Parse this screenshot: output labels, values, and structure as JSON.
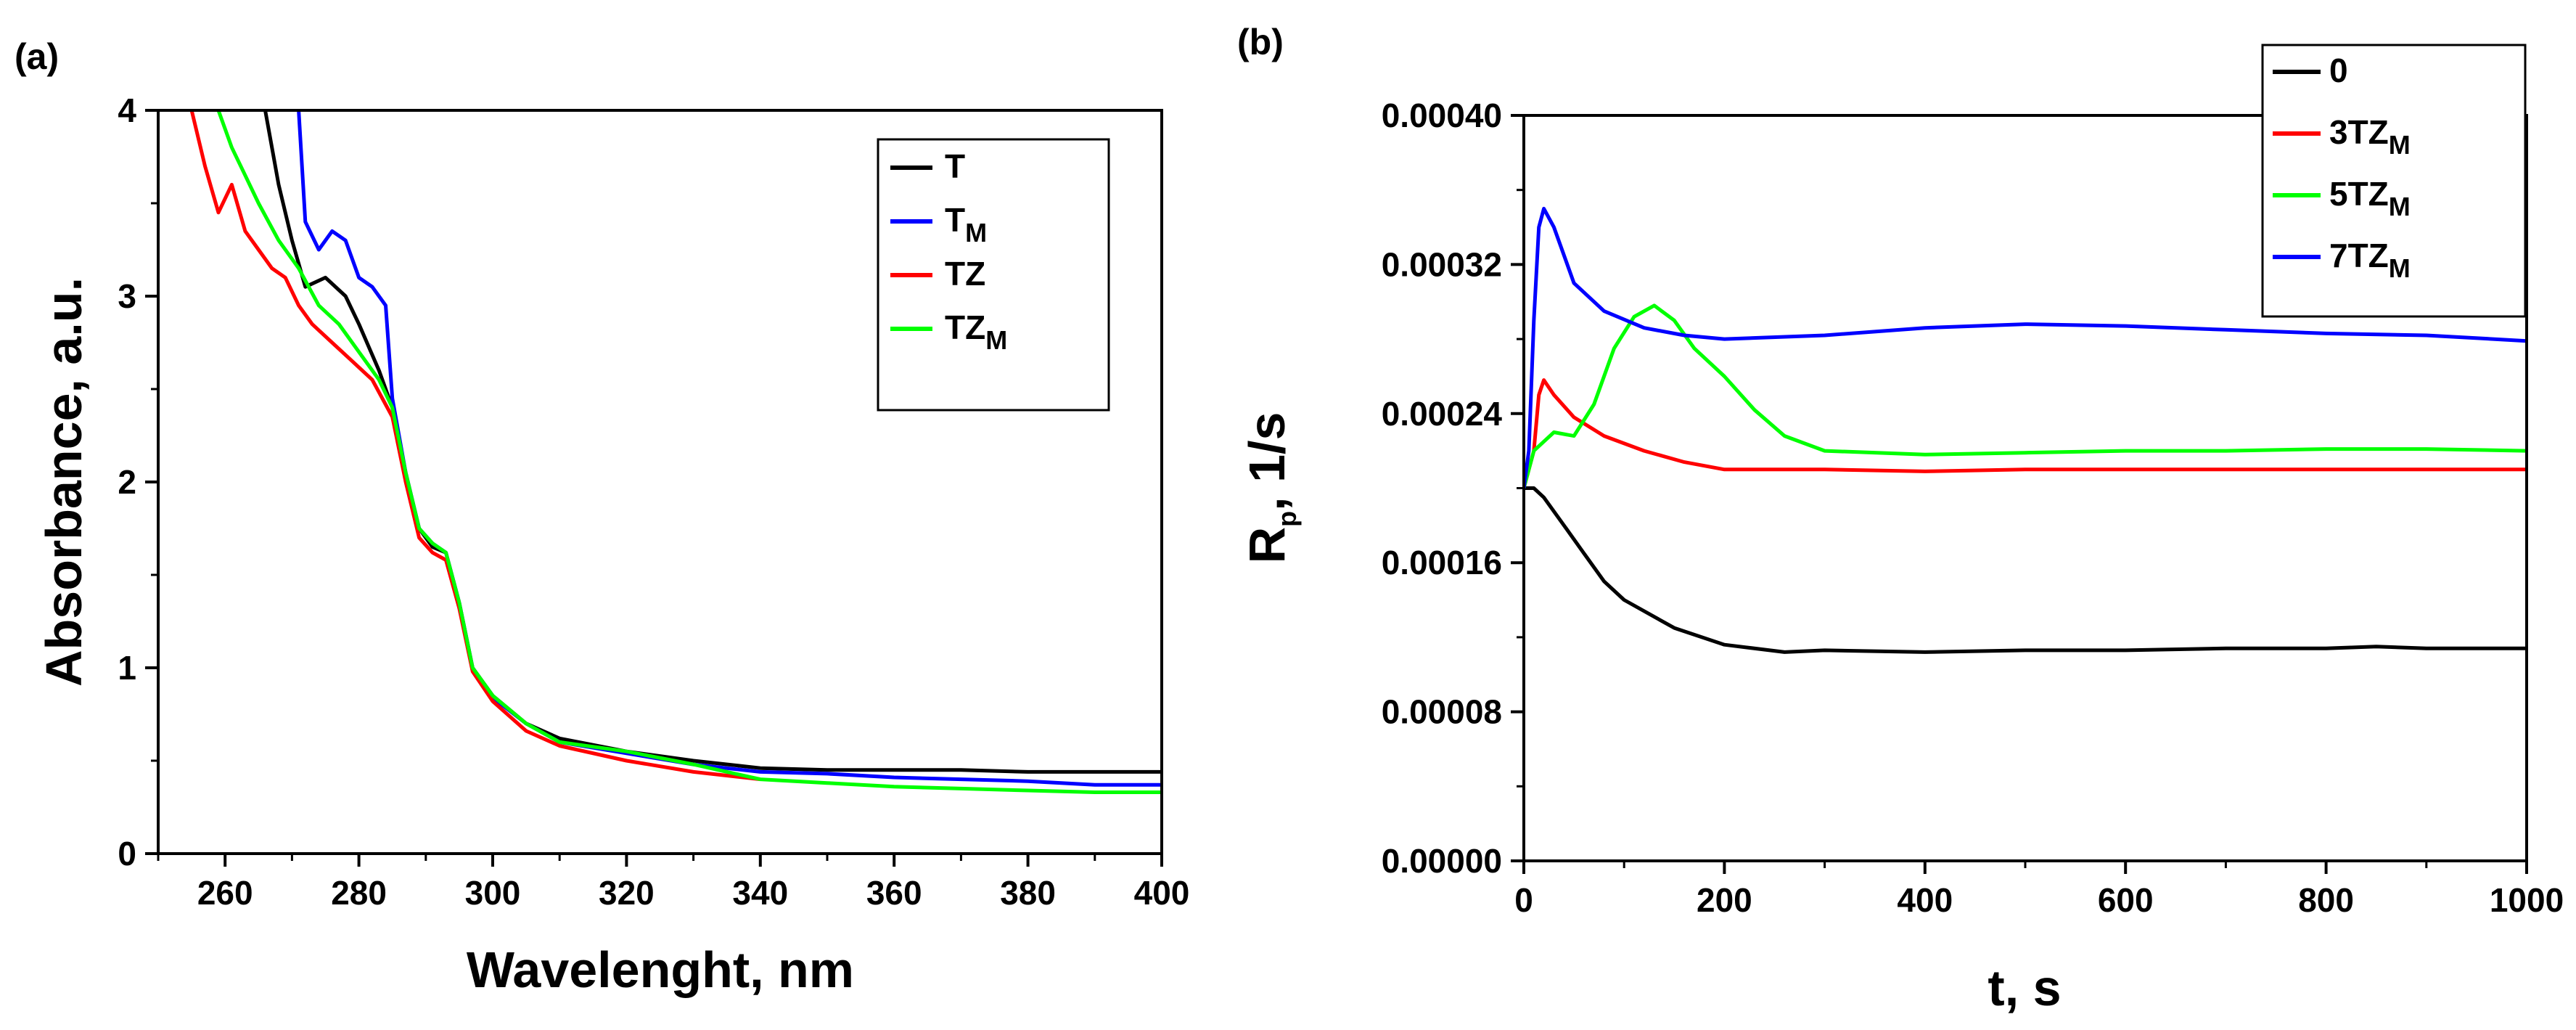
{
  "chart_data": [
    {
      "panel": "(a)",
      "type": "line",
      "xlabel": "Wavelenght, nm",
      "ylabel": "Absorbance, a.u.",
      "xlim": [
        250,
        400
      ],
      "ylim": [
        0,
        4
      ],
      "xticks": [
        260,
        280,
        300,
        320,
        340,
        360,
        380,
        400
      ],
      "yticks": [
        0,
        1,
        2,
        3,
        4
      ],
      "legend_position": "top-right",
      "series": [
        {
          "name": "T",
          "base": "T",
          "sub": "",
          "color": "#000000",
          "x": [
            266,
            268,
            270,
            272,
            275,
            278,
            280,
            283,
            285,
            287,
            289,
            291,
            293,
            295,
            297,
            300,
            305,
            310,
            320,
            330,
            340,
            350,
            360,
            370,
            380,
            390,
            400
          ],
          "y": [
            4.0,
            3.6,
            3.3,
            3.05,
            3.1,
            3.0,
            2.85,
            2.6,
            2.4,
            2.05,
            1.75,
            1.65,
            1.62,
            1.35,
            1.0,
            0.85,
            0.7,
            0.62,
            0.55,
            0.5,
            0.46,
            0.45,
            0.45,
            0.45,
            0.44,
            0.44,
            0.44
          ]
        },
        {
          "name": "TM",
          "base": "T",
          "sub": "M",
          "color": "#0000ff",
          "x": [
            271,
            272,
            274,
            276,
            278,
            280,
            282,
            284,
            285,
            287,
            289,
            291,
            293,
            295,
            297,
            300,
            305,
            310,
            320,
            330,
            340,
            350,
            360,
            370,
            380,
            390,
            400
          ],
          "y": [
            4.0,
            3.4,
            3.25,
            3.35,
            3.3,
            3.1,
            3.05,
            2.95,
            2.45,
            2.05,
            1.75,
            1.67,
            1.62,
            1.35,
            1.0,
            0.84,
            0.7,
            0.6,
            0.54,
            0.48,
            0.44,
            0.43,
            0.41,
            0.4,
            0.39,
            0.37,
            0.37
          ]
        },
        {
          "name": "TZ",
          "base": "TZ",
          "sub": "",
          "color": "#ff0000",
          "x": [
            255,
            257,
            259,
            261,
            263,
            265,
            267,
            269,
            271,
            273,
            276,
            279,
            282,
            285,
            287,
            289,
            291,
            293,
            295,
            297,
            300,
            305,
            310,
            320,
            330,
            340
          ],
          "y": [
            4.0,
            3.7,
            3.45,
            3.6,
            3.35,
            3.25,
            3.15,
            3.1,
            2.95,
            2.85,
            2.75,
            2.65,
            2.55,
            2.35,
            2.0,
            1.7,
            1.62,
            1.58,
            1.32,
            0.98,
            0.82,
            0.66,
            0.58,
            0.5,
            0.44,
            0.4
          ]
        },
        {
          "name": "TZM",
          "base": "TZ",
          "sub": "M",
          "color": "#00ff00",
          "x": [
            259,
            261,
            263,
            265,
            268,
            271,
            274,
            277,
            280,
            283,
            285,
            287,
            289,
            291,
            293,
            295,
            297,
            300,
            305,
            310,
            320,
            330,
            340,
            350,
            360,
            370,
            380,
            390,
            400
          ],
          "y": [
            4.0,
            3.8,
            3.65,
            3.5,
            3.3,
            3.15,
            2.95,
            2.85,
            2.7,
            2.55,
            2.4,
            2.05,
            1.75,
            1.67,
            1.62,
            1.35,
            1.0,
            0.85,
            0.7,
            0.6,
            0.55,
            0.48,
            0.4,
            0.38,
            0.36,
            0.35,
            0.34,
            0.33,
            0.33
          ]
        }
      ]
    },
    {
      "panel": "(b)",
      "type": "line",
      "xlabel": "t, s",
      "ylabel": "Rp, 1/s",
      "ylabel_base": "R",
      "ylabel_sub": "p",
      "ylabel_rest": ", 1/s",
      "xlim": [
        0,
        1000
      ],
      "ylim": [
        0,
        0.0004
      ],
      "xticks": [
        0,
        200,
        400,
        600,
        800,
        1000
      ],
      "yticks": [
        "0.00000",
        "0.00008",
        "0.00016",
        "0.00024",
        "0.00032",
        "0.00040"
      ],
      "legend_position": "top-right",
      "series": [
        {
          "name": "0",
          "base": "0",
          "sub": "",
          "color": "#000000",
          "x": [
            0,
            10,
            20,
            40,
            60,
            80,
            100,
            150,
            200,
            260,
            300,
            400,
            500,
            600,
            700,
            800,
            850,
            900,
            1000
          ],
          "y": [
            0.0002,
            0.0002,
            0.000195,
            0.00018,
            0.000165,
            0.00015,
            0.00014,
            0.000125,
            0.000116,
            0.000112,
            0.000113,
            0.000112,
            0.000113,
            0.000113,
            0.000114,
            0.000114,
            0.000115,
            0.000114,
            0.000114
          ]
        },
        {
          "name": "3TZM",
          "base": "3TZ",
          "sub": "M",
          "color": "#ff0000",
          "x": [
            0,
            10,
            15,
            20,
            30,
            50,
            80,
            120,
            160,
            200,
            300,
            400,
            500,
            600,
            700,
            800,
            900,
            1000
          ],
          "y": [
            0.0002,
            0.00022,
            0.00025,
            0.000258,
            0.00025,
            0.000238,
            0.000228,
            0.00022,
            0.000214,
            0.00021,
            0.00021,
            0.000209,
            0.00021,
            0.00021,
            0.00021,
            0.00021,
            0.00021,
            0.00021
          ]
        },
        {
          "name": "5TZM",
          "base": "5TZ",
          "sub": "M",
          "color": "#00ff00",
          "x": [
            0,
            10,
            20,
            30,
            50,
            70,
            90,
            110,
            130,
            150,
            170,
            200,
            230,
            260,
            300,
            400,
            500,
            600,
            700,
            800,
            900,
            1000
          ],
          "y": [
            0.0002,
            0.00022,
            0.000225,
            0.00023,
            0.000228,
            0.000245,
            0.000275,
            0.000292,
            0.000298,
            0.00029,
            0.000275,
            0.00026,
            0.000242,
            0.000228,
            0.00022,
            0.000218,
            0.000219,
            0.00022,
            0.00022,
            0.000221,
            0.000221,
            0.00022
          ]
        },
        {
          "name": "7TZM",
          "base": "7TZ",
          "sub": "M",
          "color": "#0000ff",
          "x": [
            0,
            5,
            10,
            15,
            20,
            30,
            50,
            80,
            120,
            160,
            200,
            300,
            400,
            500,
            600,
            700,
            800,
            900,
            1000
          ],
          "y": [
            0.0002,
            0.00022,
            0.00029,
            0.00034,
            0.00035,
            0.00034,
            0.00031,
            0.000295,
            0.000286,
            0.000282,
            0.00028,
            0.000282,
            0.000286,
            0.000288,
            0.000287,
            0.000285,
            0.000283,
            0.000282,
            0.000279
          ]
        }
      ]
    }
  ]
}
